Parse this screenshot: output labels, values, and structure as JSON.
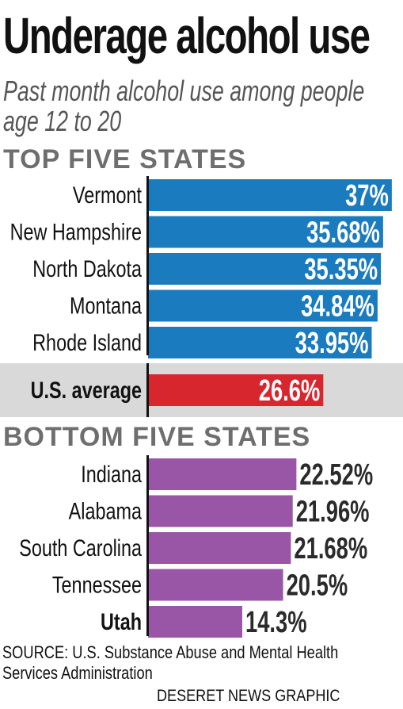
{
  "title": "Underage alcohol use",
  "subtitle": "Past month alcohol use among people age 12 to 20",
  "source": "SOURCE: U.S. Substance Abuse and Mental Health Services Administration",
  "credit": "DESERET NEWS GRAPHIC",
  "colors": {
    "top": "#1a7bbf",
    "average": "#d8262e",
    "bottom": "#9a56a6",
    "average_band": "#d9d9d9",
    "axis": "#111111",
    "header": "#6e6e6e"
  },
  "chart_data": {
    "type": "bar",
    "orientation": "horizontal",
    "unit": "%",
    "xlim": [
      0,
      38.7
    ],
    "groups": [
      {
        "heading": "TOP FIVE STATES",
        "color_key": "top",
        "label_position": "inside",
        "items": [
          {
            "category": "Vermont",
            "value": 37,
            "label": "37%",
            "bold": false
          },
          {
            "category": "New Hampshire",
            "value": 35.68,
            "label": "35.68%",
            "bold": false
          },
          {
            "category": "North Dakota",
            "value": 35.35,
            "label": "35.35%",
            "bold": false
          },
          {
            "category": "Montana",
            "value": 34.84,
            "label": "34.84%",
            "bold": false
          },
          {
            "category": "Rhode Island",
            "value": 33.95,
            "label": "33.95%",
            "bold": false
          }
        ]
      },
      {
        "heading": "",
        "color_key": "average",
        "label_position": "inside",
        "highlight": true,
        "items": [
          {
            "category": "U.S. average",
            "value": 26.6,
            "label": "26.6%",
            "bold": true
          }
        ]
      },
      {
        "heading": "BOTTOM FIVE STATES",
        "color_key": "bottom",
        "label_position": "outside",
        "items": [
          {
            "category": "Indiana",
            "value": 22.52,
            "label": "22.52%",
            "bold": false
          },
          {
            "category": "Alabama",
            "value": 21.96,
            "label": "21.96%",
            "bold": false
          },
          {
            "category": "South Carolina",
            "value": 21.68,
            "label": "21.68%",
            "bold": false
          },
          {
            "category": "Tennessee",
            "value": 20.5,
            "label": "20.5%",
            "bold": false
          },
          {
            "category": "Utah",
            "value": 14.3,
            "label": "14.3%",
            "bold": true
          }
        ]
      }
    ]
  }
}
